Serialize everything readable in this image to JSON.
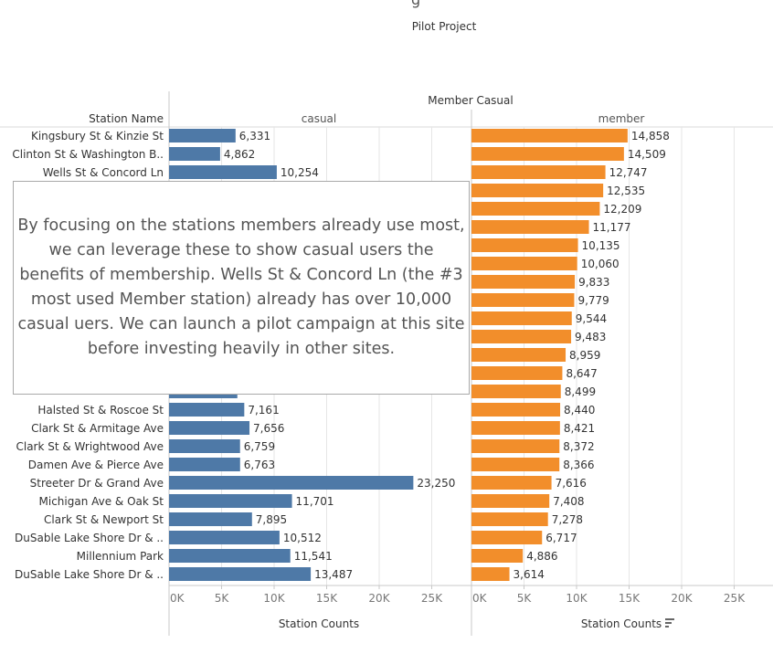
{
  "title_fragment": "g",
  "subtitle": "Pilot Project",
  "annotation": "By focusing on the stations members already use most, we can leverage these to show casual users the benefits of membership. Wells St & Concord Ln (the #3 most used Member station) already has over 10,000 casual uers. We can launch a pilot campaign at this site before investing heavily in other sites.",
  "colors": {
    "casual": "#4e79a7",
    "member": "#f28e2b",
    "text": "#333333",
    "grid": "#e6e6e6",
    "axis": "#c8c8c8"
  },
  "chart_data": {
    "type": "bar",
    "orientation": "horizontal",
    "column_header": "Member Casual",
    "row_header": "Station Name",
    "xlabel": "Station Counts",
    "xlim": [
      0,
      28000
    ],
    "ticks": [
      0,
      5000,
      10000,
      15000,
      20000,
      25000
    ],
    "tick_labels": [
      "0K",
      "5K",
      "10K",
      "15K",
      "20K",
      "25K"
    ],
    "sort_icon": "sort-descending-icon",
    "panels": [
      "casual",
      "member"
    ],
    "categories": [
      "Kingsbury St & Kinzie St",
      "Clinton St & Washington B..",
      "Wells St & Concord Ln",
      "",
      "",
      "",
      "",
      "",
      "",
      "",
      "",
      "",
      "",
      "",
      "",
      "Halsted St & Roscoe St",
      "Clark St & Armitage Ave",
      "Clark St & Wrightwood Ave",
      "Damen Ave & Pierce Ave",
      "Streeter Dr & Grand Ave",
      "Michigan Ave & Oak St",
      "Clark St & Newport St",
      "DuSable Lake Shore Dr & ..",
      "Millennium Park",
      "DuSable Lake Shore Dr & .."
    ],
    "series": [
      {
        "name": "casual",
        "values": [
          6331,
          4862,
          10254,
          null,
          null,
          null,
          null,
          null,
          null,
          null,
          null,
          null,
          null,
          null,
          6500,
          7161,
          7656,
          6759,
          6763,
          23250,
          11701,
          7895,
          10512,
          11541,
          13487
        ],
        "labels": [
          "6,331",
          "4,862",
          "10,254",
          "",
          "",
          "",
          "",
          "",
          "",
          "",
          "",
          "",
          "",
          "",
          "",
          "7,161",
          "7,656",
          "6,759",
          "6,763",
          "23,250",
          "11,701",
          "7,895",
          "10,512",
          "11,541",
          "13,487"
        ]
      },
      {
        "name": "member",
        "values": [
          14858,
          14509,
          12747,
          12535,
          12209,
          11177,
          10135,
          10060,
          9833,
          9779,
          9544,
          9483,
          8959,
          8647,
          8499,
          8440,
          8421,
          8372,
          8366,
          7616,
          7408,
          7278,
          6717,
          4886,
          3614
        ],
        "labels": [
          "14,858",
          "14,509",
          "12,747",
          "12,535",
          "12,209",
          "11,177",
          "10,135",
          "10,060",
          "9,833",
          "9,779",
          "9,544",
          "9,483",
          "8,959",
          "8,647",
          "8,499",
          "8,440",
          "8,421",
          "8,372",
          "8,366",
          "7,616",
          "7,408",
          "7,278",
          "6,717",
          "4,886",
          "3,614"
        ]
      }
    ]
  }
}
